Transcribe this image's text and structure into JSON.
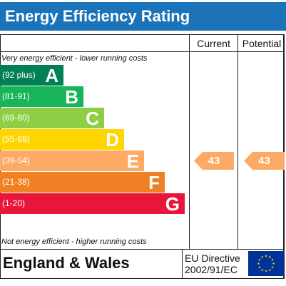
{
  "title": "Energy Efficiency Rating",
  "columns": {
    "current": "Current",
    "potential": "Potential"
  },
  "top_note": "Very energy efficient - lower running costs",
  "bottom_note": "Not energy efficient - higher running costs",
  "bands": [
    {
      "range": "(92 plus)",
      "letter": "A",
      "color": "#008054"
    },
    {
      "range": "(81-91)",
      "letter": "B",
      "color": "#19b459"
    },
    {
      "range": "(69-80)",
      "letter": "C",
      "color": "#8dce46"
    },
    {
      "range": "(55-68)",
      "letter": "D",
      "color": "#ffd500"
    },
    {
      "range": "(39-54)",
      "letter": "E",
      "color": "#fcaa65"
    },
    {
      "range": "(21-38)",
      "letter": "F",
      "color": "#ef8023"
    },
    {
      "range": "(1-20)",
      "letter": "G",
      "color": "#e9153b"
    }
  ],
  "current": {
    "value": "43",
    "band": "E",
    "color": "#fcaa65"
  },
  "potential": {
    "value": "43",
    "band": "E",
    "color": "#fcaa65"
  },
  "footer": {
    "region": "England & Wales",
    "directive_line1": "EU Directive",
    "directive_line2": "2002/91/EC"
  },
  "flag": {
    "background": "#003399",
    "stars": "#ffcc00"
  }
}
